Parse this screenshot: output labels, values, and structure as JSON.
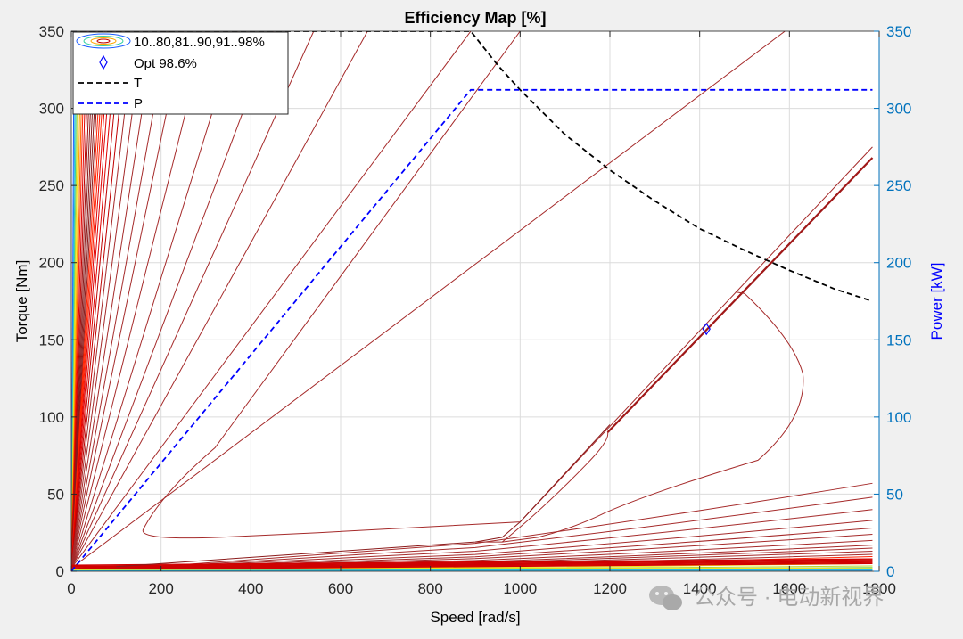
{
  "chart_data": {
    "type": "line",
    "title": "Efficiency Map [%]",
    "xlabel": "Speed [rad/s]",
    "ylabel": "Torque [Nm]",
    "y2label": "Power [kW]",
    "xlim": [
      0,
      1800
    ],
    "ylim": [
      0,
      350
    ],
    "y2lim": [
      0,
      350
    ],
    "xticks": [
      0,
      200,
      400,
      600,
      800,
      1000,
      1200,
      1400,
      1600,
      1800
    ],
    "yticks": [
      0,
      50,
      100,
      150,
      200,
      250,
      300,
      350
    ],
    "y2ticks": [
      0,
      50,
      100,
      150,
      200,
      250,
      300,
      350
    ],
    "grid": true,
    "legend_position": "top-left",
    "legend": {
      "contour_label": "10..80,81..90,91..98%",
      "opt_label": "Opt 98.6%",
      "torque_label": "T",
      "power_label": "P"
    },
    "series": [
      {
        "name": "T",
        "axis": "left",
        "style": "dashed",
        "color": "#000000",
        "x": [
          0,
          890,
          950,
          1000,
          1100,
          1200,
          1300,
          1400,
          1500,
          1600,
          1700,
          1785
        ],
        "y": [
          350,
          350,
          328,
          312,
          283,
          260,
          240,
          222,
          208,
          195,
          183,
          175
        ]
      },
      {
        "name": "P",
        "axis": "right",
        "style": "dashed",
        "color": "#0000ff",
        "x": [
          0,
          890,
          1785
        ],
        "y": [
          0,
          312,
          312
        ]
      }
    ],
    "optimum": {
      "speed": 1415,
      "torque": 157,
      "efficiency": 98.6
    },
    "contours": {
      "ray_speeds_at_top": [
        70,
        75,
        80,
        86,
        93,
        102,
        112,
        125,
        140,
        160,
        185,
        215,
        250,
        300,
        370,
        450,
        540,
        660,
        890,
        1590
      ],
      "low_line_torques_at_max_speed": [
        0.5,
        1.5,
        2.5,
        3.5,
        5,
        6.5,
        8,
        9.5,
        11,
        13,
        15,
        17,
        20,
        24,
        28,
        33,
        40,
        48,
        57
      ],
      "loops": [
        {
          "speed": [
            1000,
            890,
            550,
            300,
            150,
            165,
            320,
            600,
            890,
            950,
            1000,
            1180,
            1800
          ],
          "torque": [
            32,
            29,
            25,
            22,
            18,
            28,
            70,
            130,
            185,
            210,
            220,
            260,
            275
          ]
        },
        {
          "speed": [
            1785,
            1200,
            1190,
            1250,
            1480,
            1540,
            1610,
            1640,
            1630,
            1530,
            1300,
            1190,
            1120,
            1040,
            960
          ],
          "torque": [
            268,
            95,
            91,
            95,
            180,
            170,
            148,
            125,
            100,
            70,
            42,
            35,
            30,
            22,
            19
          ]
        }
      ],
      "colors": [
        "#1a5cff",
        "#22b8e8",
        "#33d1a0",
        "#b8d631",
        "#f3e51c",
        "#ffa600",
        "#ff6a00",
        "#ff2000",
        "#e00000",
        "#c00000",
        "#a01010",
        "#8b1a1a"
      ]
    }
  },
  "watermark": "公众号 · 电动新视界"
}
